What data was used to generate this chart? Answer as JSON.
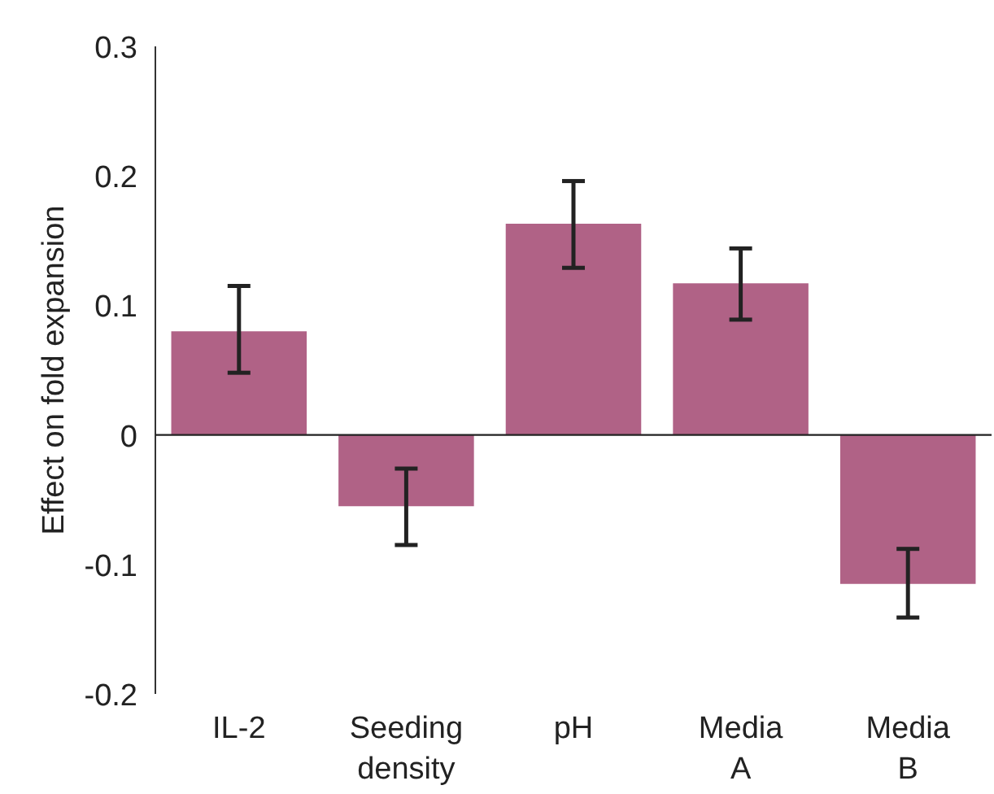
{
  "chart_data": {
    "type": "bar",
    "ylabel": "Effect on fold expansion",
    "categories": [
      "IL-2",
      "Seeding density",
      "pH",
      "Media A",
      "Media B"
    ],
    "values": [
      0.08,
      -0.055,
      0.163,
      0.117,
      -0.115
    ],
    "errors": [
      [
        0.048,
        0.115
      ],
      [
        -0.085,
        -0.026
      ],
      [
        0.129,
        0.196
      ],
      [
        0.089,
        0.144
      ],
      [
        -0.141,
        -0.088
      ]
    ],
    "color": "#b06286",
    "ylim": [
      -0.2,
      0.3
    ],
    "yticks": [
      -0.2,
      -0.1,
      0,
      0.1,
      0.2,
      0.3
    ],
    "ref_lines": [
      {
        "axis": "y",
        "value": 0,
        "color": "#222222"
      }
    ],
    "grid": false
  }
}
